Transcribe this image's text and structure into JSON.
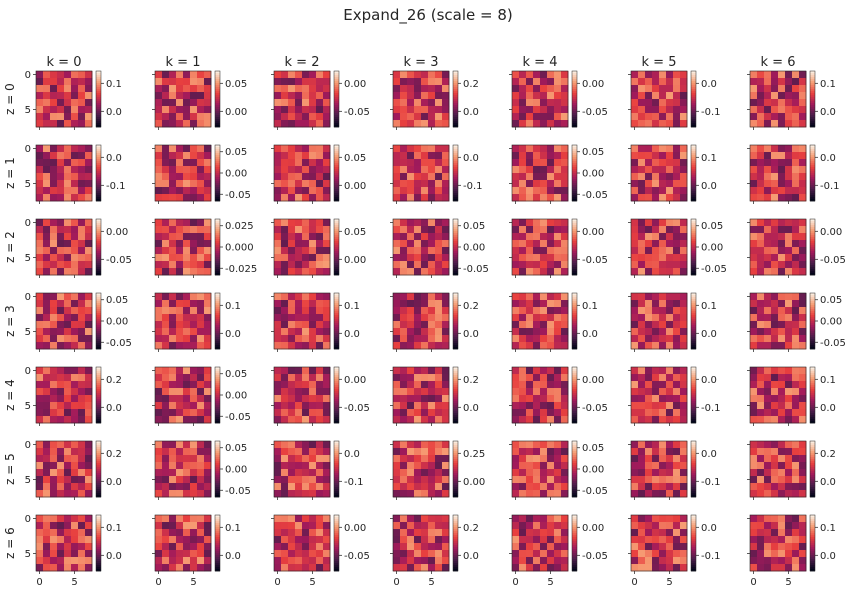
{
  "chart_data": {
    "type": "heatmap",
    "title": "Expand_26 (scale = 8)",
    "grid_size": 8,
    "colormap": "rocket",
    "colormap_stops": [
      "#03051a",
      "#4c1d4b",
      "#a11a5b",
      "#e83f3f",
      "#f69c73",
      "#faebdd"
    ],
    "column_labels": [
      "k = 0",
      "k = 1",
      "k = 2",
      "k = 3",
      "k = 4",
      "k = 5",
      "k = 6"
    ],
    "row_labels": [
      "z = 0",
      "z = 1",
      "z = 2",
      "z = 3",
      "z = 4",
      "z = 5",
      "z = 6"
    ],
    "x_ticks": [
      "0",
      "5"
    ],
    "y_ticks": [
      "0",
      "5"
    ],
    "colorbar_ticks": [
      [
        [
          "0.1",
          "0.0"
        ],
        [
          "0.05",
          "0.00"
        ],
        [
          "0.00",
          "-0.05"
        ],
        [
          "0.2",
          "0.0"
        ],
        [
          "0.00",
          "-0.05"
        ],
        [
          "0.0",
          "-0.1"
        ],
        [
          "0.1",
          "0.0"
        ]
      ],
      [
        [
          "0.0",
          "-0.1"
        ],
        [
          "0.05",
          "0.00",
          "-0.05"
        ],
        [
          "0.05",
          "0.00"
        ],
        [
          "0.0",
          "-0.1"
        ],
        [
          "0.05",
          "0.00",
          "-0.05"
        ],
        [
          "0.1",
          "0.0"
        ],
        [
          "0.0",
          "-0.1"
        ]
      ],
      [
        [
          "0.00",
          "-0.05"
        ],
        [
          "0.025",
          "0.000",
          "-0.025"
        ],
        [
          "0.05",
          "0.00"
        ],
        [
          "0.05",
          "0.00",
          "-0.05"
        ],
        [
          "0.00",
          "-0.05"
        ],
        [
          "0.05",
          "0.00",
          "-0.05"
        ],
        [
          "0.00",
          "-0.05"
        ]
      ],
      [
        [
          "0.05",
          "0.00",
          "-0.05"
        ],
        [
          "0.1",
          "0.0"
        ],
        [
          "0.1",
          "0.0"
        ],
        [
          "0.2",
          "0.0"
        ],
        [
          "0.1",
          "0.0"
        ],
        [
          "0.1",
          "0.0"
        ],
        [
          "0.05",
          "0.00",
          "-0.05"
        ]
      ],
      [
        [
          "0.2",
          "0.0"
        ],
        [
          "0.05",
          "0.00",
          "-0.05"
        ],
        [
          "0.00",
          "-0.05"
        ],
        [
          "0.2",
          "0.0"
        ],
        [
          "0.00",
          "-0.05"
        ],
        [
          "0.0",
          "-0.1"
        ],
        [
          "0.1",
          "0.0"
        ]
      ],
      [
        [
          "0.2",
          "0.0"
        ],
        [
          "0.05",
          "0.00",
          "-0.05"
        ],
        [
          "0.0",
          "-0.1"
        ],
        [
          "0.25",
          "0.00"
        ],
        [
          "0.05",
          "0.00",
          "-0.05"
        ],
        [
          "0.0",
          "-0.1"
        ],
        [
          "0.2",
          "0.0"
        ]
      ],
      [
        [
          "0.1",
          "0.0"
        ],
        [
          "0.1",
          "0.0"
        ],
        [
          "0.00",
          "-0.05"
        ],
        [
          "0.2",
          "0.0"
        ],
        [
          "0.00",
          "-0.05"
        ],
        [
          "0.0",
          "-0.1"
        ],
        [
          "0.1",
          "0.0"
        ]
      ]
    ]
  }
}
